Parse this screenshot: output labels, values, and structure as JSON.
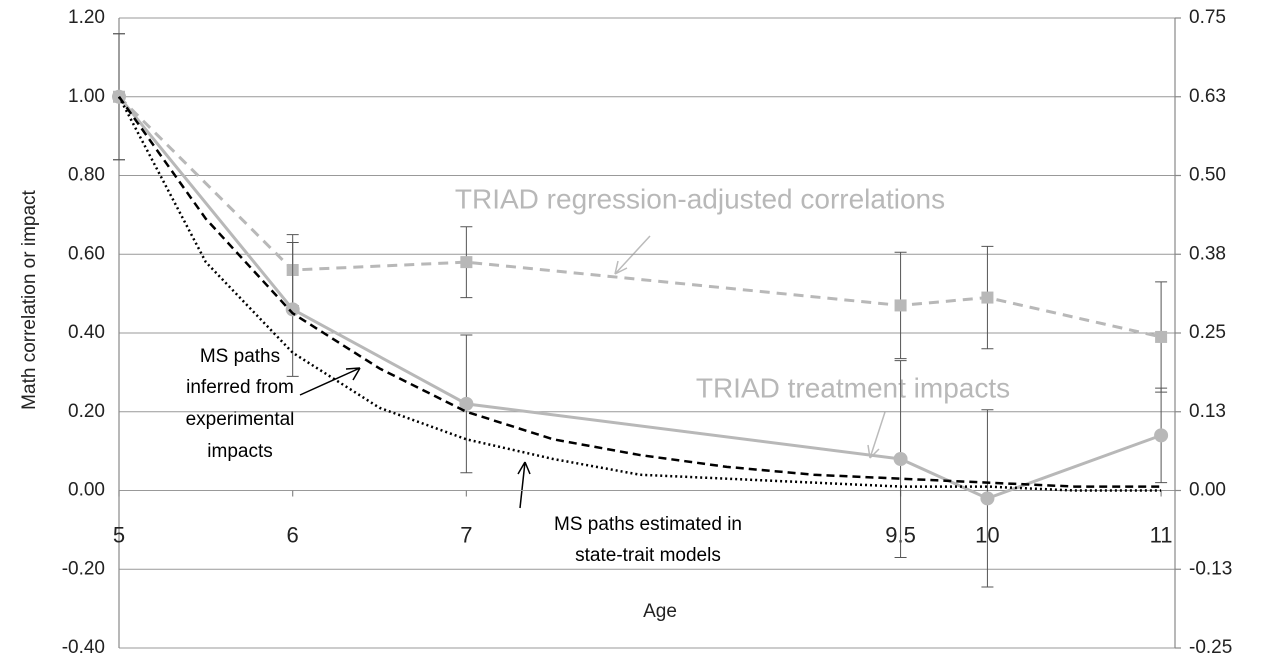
{
  "chart_data": {
    "type": "line",
    "x_label": "Age",
    "y_label": "Math correlation or impact",
    "xlim": [
      5,
      11.08
    ],
    "xticks": [
      5,
      6,
      7,
      9.5,
      10,
      11
    ],
    "ylim": [
      -0.4,
      1.2
    ],
    "yticks": [
      {
        "value": -0.4,
        "label": "-0.40"
      },
      {
        "value": -0.2,
        "label": "-0.20"
      },
      {
        "value": 0,
        "label": "0.00"
      },
      {
        "value": 0.2,
        "label": "0.20"
      },
      {
        "value": 0.4,
        "label": "0.40"
      },
      {
        "value": 0.6,
        "label": "0.60"
      },
      {
        "value": 0.8,
        "label": "0.80"
      },
      {
        "value": 1.0,
        "label": "1.00"
      },
      {
        "value": 1.2,
        "label": "1.20"
      }
    ],
    "y2lim": [
      -0.25,
      0.75
    ],
    "y2ticks": [
      {
        "value": -0.25,
        "label": "-0.25"
      },
      {
        "value": -0.125,
        "label": "-0.13"
      },
      {
        "value": 0,
        "label": "0.00"
      },
      {
        "value": 0.125,
        "label": "0.13"
      },
      {
        "value": 0.25,
        "label": "0.25"
      },
      {
        "value": 0.375,
        "label": "0.38"
      },
      {
        "value": 0.5,
        "label": "0.50"
      },
      {
        "value": 0.625,
        "label": "0.63"
      },
      {
        "value": 0.75,
        "label": "0.75"
      }
    ],
    "grid": true,
    "series": [
      {
        "name": "TRIAD regression-adjusted correlations",
        "color": "#b8b8b8",
        "dash": "10,7",
        "marker": "square",
        "x": [
          5,
          6,
          7,
          9.5,
          10,
          11
        ],
        "values": [
          1.0,
          0.56,
          0.58,
          0.47,
          0.49,
          0.39
        ],
        "errors": [
          0.16,
          0.09,
          0.09,
          0.135,
          0.13,
          0.14
        ]
      },
      {
        "name": "TRIAD treatment impacts",
        "color": "#b8b8b8",
        "dash": "",
        "marker": "circle",
        "x": [
          5,
          6,
          7,
          9.5,
          10,
          11
        ],
        "values": [
          1.0,
          0.46,
          0.22,
          0.08,
          -0.02,
          0.14
        ],
        "errors": [
          0.16,
          0.17,
          0.175,
          0.25,
          0.225,
          0.12
        ]
      },
      {
        "label_lines": [
          "MS paths",
          "inferred from",
          "experimental",
          "impacts"
        ],
        "color": "#000",
        "dash": "8,5",
        "marker": "none",
        "x": [
          5,
          5.5,
          6,
          6.5,
          7,
          7.5,
          8,
          8.5,
          9,
          9.5,
          10,
          10.5,
          11
        ],
        "values": [
          1.0,
          0.69,
          0.45,
          0.31,
          0.2,
          0.13,
          0.09,
          0.06,
          0.04,
          0.03,
          0.02,
          0.01,
          0.01
        ]
      },
      {
        "label_lines": [
          "MS paths estimated in",
          "state-trait models"
        ],
        "color": "#000",
        "dash": "2,3",
        "marker": "none",
        "x": [
          5,
          5.5,
          6,
          6.5,
          7,
          7.5,
          8,
          8.5,
          9,
          9.5,
          10,
          10.5,
          11
        ],
        "values": [
          1.0,
          0.58,
          0.35,
          0.21,
          0.13,
          0.08,
          0.04,
          0.03,
          0.02,
          0.01,
          0.01,
          0.0,
          0.0
        ]
      }
    ]
  }
}
